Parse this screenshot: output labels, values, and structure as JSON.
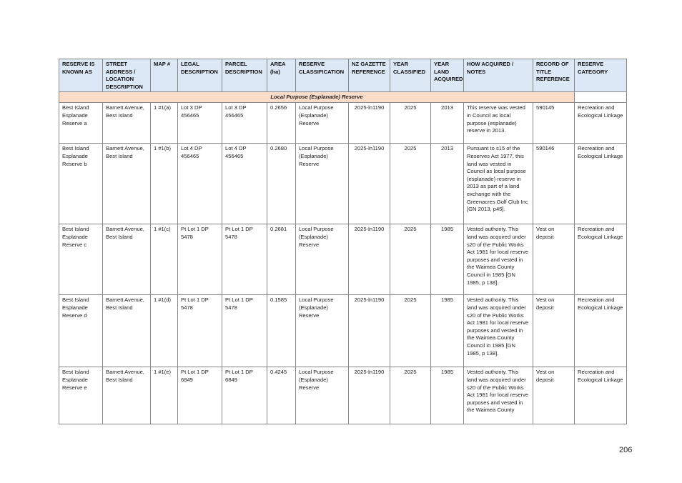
{
  "headers": [
    "RESERVE IS KNOWN AS",
    "STREET ADDRESS / LOCATION DESCRIPTION",
    "MAP #",
    "LEGAL DESCRIPTION",
    "PARCEL DESCRIPTION",
    "AREA (ha)",
    "RESERVE CLASSIFICATION",
    "NZ GAZETTE REFERENCE",
    "YEAR CLASSIFIED",
    "YEAR LAND ACQUIRED",
    "HOW ACQUIRED / NOTES",
    "RECORD OF TITLE REFERENCE",
    "RESERVE CATEGORY"
  ],
  "section_title": "Local Purpose (Esplanade) Reserve",
  "rows": [
    [
      "Best Island Esplanade Reserve a",
      "Barnett Avenue, Best Island",
      "1 #1(a)",
      "Lot 3 DP 456465",
      "Lot 3 DP 456465",
      "0.2656",
      "Local Purpose (Esplanade) Reserve",
      "2025-ln1190",
      "2025",
      "2013",
      "This reserve was vested in Council as local purpose (esplanade) reserve in 2013.",
      "590145",
      "Recreation and Ecological Linkage"
    ],
    [
      "Best Island Esplanade Reserve b",
      "Barnett Avenue, Best Island",
      "1 #1(b)",
      "Lot 4 DP 456465",
      "Lot 4 DP 456465",
      "0.2680",
      "Local Purpose (Esplanade) Reserve",
      "2025-ln1190",
      "2025",
      "2013",
      "Pursuant to s15 of the Reserves Act 1977, this land was vested in Council as local purpose (esplanade) reserve in 2013 as part of a land exchange with the Greenacres Golf Club Inc [GN 2013, p45].",
      "590146",
      "Recreation and Ecological Linkage"
    ],
    [
      "Best Island Esplanade Reserve c",
      "Barnett Avenue, Best Island",
      "1 #1(c)",
      "Pt Lot 1 DP 5478",
      "Pt Lot 1 DP 5478",
      "0.2681",
      "Local Purpose (Esplanade) Reserve",
      "2025-ln1190",
      "2025",
      "1985",
      "Vested authority. This land was acquired under s20 of the Public Works Act 1981 for local reserve purposes and vested in the Waimea County Council in 1985 [GN 1985, p 138].",
      "Vest on deposit",
      "Recreation and Ecological Linkage"
    ],
    [
      "Best Island Esplanade Reserve d",
      "Barnett Avenue, Best Island",
      "1 #1(d)",
      "Pt Lot 1 DP 5478",
      "Pt Lot 1 DP 5478",
      "0.1585",
      "Local Purpose (Esplanade) Reserve",
      "2025-ln1190",
      "2025",
      "1985",
      "Vested authority. This land was acquired under s20 of the Public Works Act 1981 for local reserve purposes and vested in the Waimea County Council in 1985 [GN 1985, p 138].",
      "Vest on deposit",
      "Recreation and Ecological Linkage"
    ],
    [
      "Best Island Esplanade Reserve e",
      "Barnett Avenue, Best Island",
      "1 #1(e)",
      "Pt Lot 1 DP 6849",
      "Pt Lot 1 DP 6849",
      "0.4245",
      "Local Purpose (Esplanade) Reserve",
      "2025-ln1190",
      "2025",
      "1985",
      "Vested authority. This land was acquired under s20 of the Public Works Act 1981 for local reserve purposes and vested in the Waimea County",
      "Vest on deposit",
      "Recreation and Ecological Linkage"
    ]
  ],
  "page_number": "206"
}
